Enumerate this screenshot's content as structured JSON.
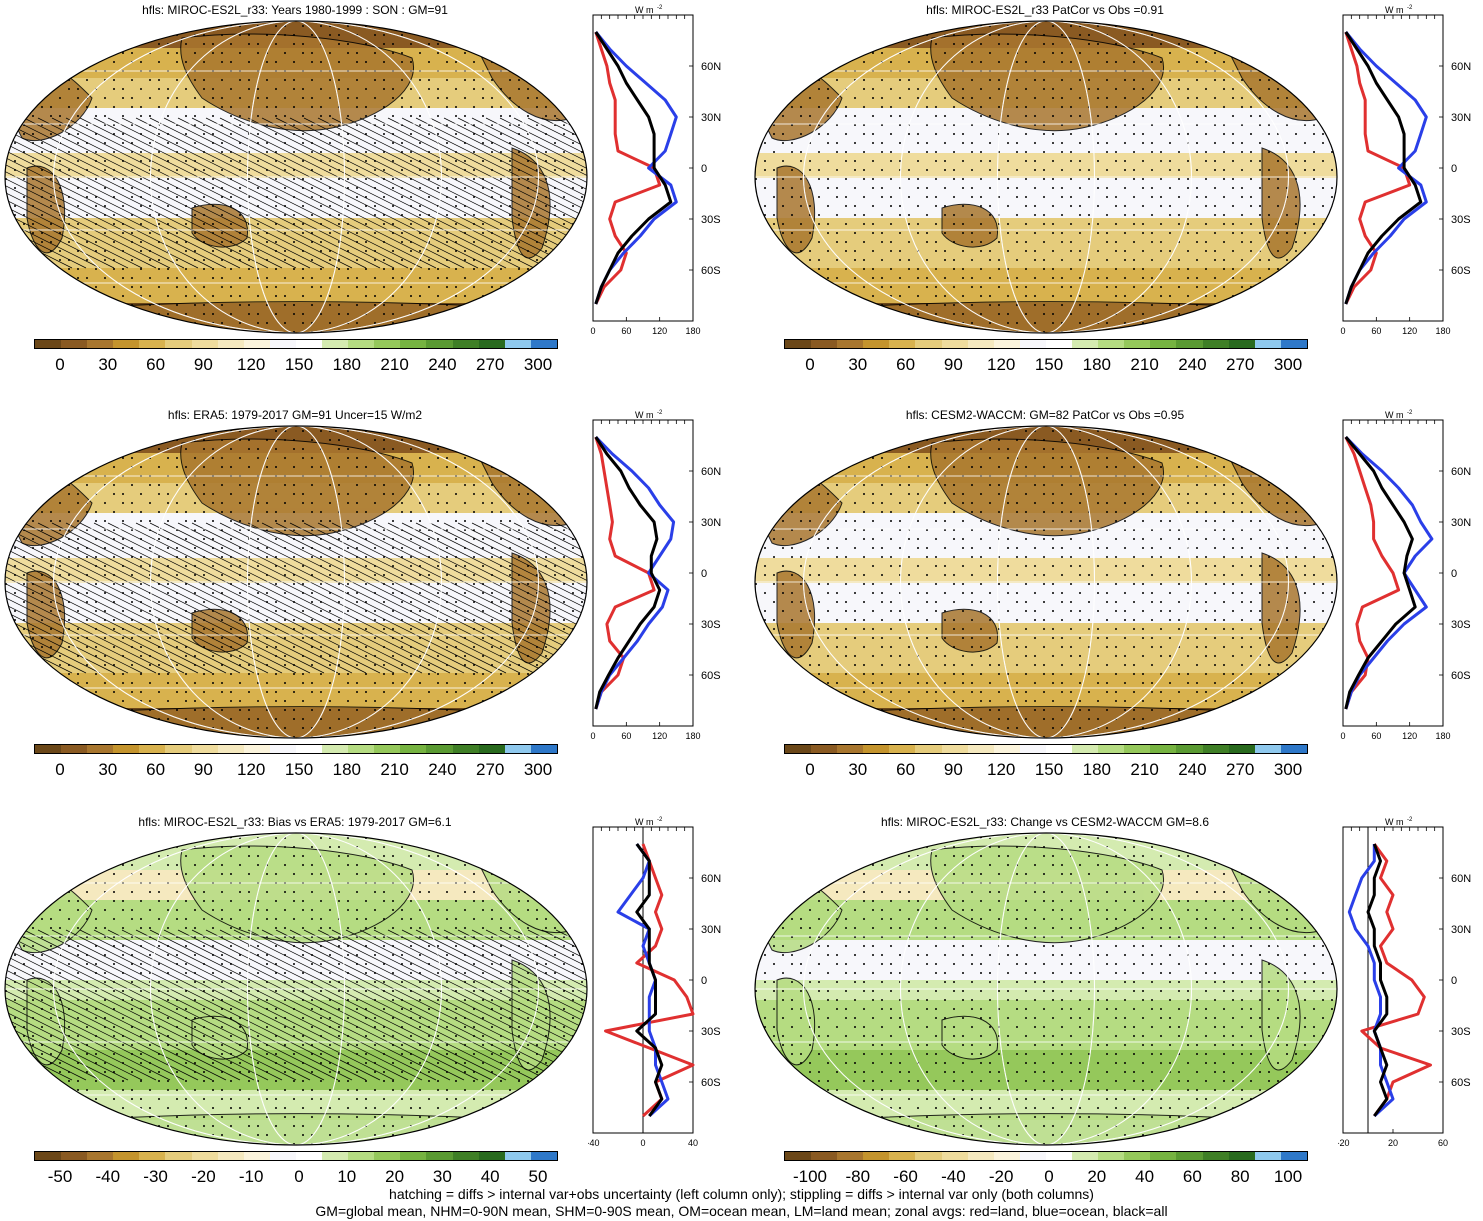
{
  "colors": {
    "scale": [
      "#6b4718",
      "#8a5a22",
      "#a8762e",
      "#c4942d",
      "#d8b24e",
      "#e5cc7c",
      "#efdc9d",
      "#f5e9bf",
      "#fbf4dc",
      "#f7f7fb",
      "#ffffff",
      "#d4ebb0",
      "#b5dc82",
      "#95c85b",
      "#76b341",
      "#5a9a32",
      "#3f7f26",
      "#296a1e",
      "#8fc9ee",
      "#2e78c9"
    ],
    "land": "#e03030",
    "ocean": "#2a3fe8",
    "all": "#000000"
  },
  "panels": [
    {
      "id": "top-left",
      "title": "hfls: MIROC-ES2L_r33: Years 1980-1999 : SON : GM=91",
      "cbar_labels": [
        "0",
        "30",
        "60",
        "90",
        "120",
        "150",
        "180",
        "210",
        "240",
        "270",
        "300"
      ],
      "hatch": true
    },
    {
      "id": "top-right",
      "title": "hfls: MIROC-ES2L_r33 PatCor vs Obs =0.91",
      "cbar_labels": [
        "0",
        "30",
        "60",
        "90",
        "120",
        "150",
        "180",
        "210",
        "240",
        "270",
        "300"
      ],
      "hatch": false
    },
    {
      "id": "mid-left",
      "title": "hfls: ERA5: 1979-2017 GM=91 Uncer=15 W/m2",
      "cbar_labels": [
        "0",
        "30",
        "60",
        "90",
        "120",
        "150",
        "180",
        "210",
        "240",
        "270",
        "300"
      ],
      "hatch": true
    },
    {
      "id": "mid-right",
      "title": "hfls: CESM2-WACCM: GM=82 PatCor vs Obs =0.95",
      "cbar_labels": [
        "0",
        "30",
        "60",
        "90",
        "120",
        "150",
        "180",
        "210",
        "240",
        "270",
        "300"
      ],
      "hatch": false
    },
    {
      "id": "bot-left",
      "title": "hfls: MIROC-ES2L_r33: Bias vs ERA5: 1979-2017  GM=6.1",
      "cbar_labels": [
        "-50",
        "-40",
        "-30",
        "-20",
        "-10",
        "0",
        "10",
        "20",
        "30",
        "40",
        "50"
      ],
      "hatch": true
    },
    {
      "id": "bot-right",
      "title": "hfls: MIROC-ES2L_r33: Change vs CESM2-WACCM GM=8.6",
      "cbar_labels": [
        "-100",
        "-80",
        "-60",
        "-40",
        "-20",
        "0",
        "20",
        "40",
        "60",
        "80",
        "100"
      ],
      "hatch": false
    }
  ],
  "zonal_unit": "W m",
  "zonal_unit_exp": "-2",
  "lat_labels": [
    "60N",
    "30N",
    "0",
    "30S",
    "60S"
  ],
  "chart_data": [
    {
      "type": "line",
      "title": "",
      "xlabel": "W m-2",
      "ylabel": "",
      "xlim": [
        0,
        180
      ],
      "xticks": [
        "0",
        "60",
        "120",
        "180"
      ],
      "y": [
        80,
        70,
        60,
        50,
        40,
        30,
        20,
        10,
        0,
        -10,
        -20,
        -30,
        -40,
        -50,
        -60,
        -70,
        -80
      ],
      "series": [
        {
          "name": "red=land",
          "values": [
            5,
            15,
            25,
            30,
            40,
            40,
            40,
            45,
            110,
            120,
            40,
            30,
            40,
            60,
            50,
            20,
            5
          ]
        },
        {
          "name": "blue=ocean",
          "values": [
            5,
            30,
            60,
            95,
            130,
            150,
            140,
            130,
            100,
            140,
            150,
            110,
            85,
            55,
            30,
            15,
            5
          ]
        },
        {
          "name": "black=all",
          "values": [
            5,
            25,
            45,
            60,
            80,
            100,
            110,
            110,
            110,
            130,
            140,
            100,
            70,
            45,
            30,
            15,
            5
          ]
        }
      ]
    },
    {
      "type": "line",
      "title": "",
      "xlabel": "W m-2",
      "ylabel": "",
      "xlim": [
        0,
        180
      ],
      "xticks": [
        "0",
        "60",
        "120",
        "180"
      ],
      "y": [
        80,
        70,
        60,
        50,
        40,
        30,
        20,
        10,
        0,
        -10,
        -20,
        -30,
        -40,
        -50,
        -60,
        -70,
        -80
      ],
      "series": [
        {
          "name": "red=land",
          "values": [
            5,
            15,
            25,
            30,
            40,
            40,
            40,
            45,
            110,
            120,
            40,
            30,
            40,
            60,
            50,
            20,
            5
          ]
        },
        {
          "name": "blue=ocean",
          "values": [
            5,
            30,
            60,
            95,
            130,
            150,
            140,
            130,
            100,
            140,
            150,
            110,
            85,
            55,
            30,
            15,
            5
          ]
        },
        {
          "name": "black=all",
          "values": [
            5,
            25,
            45,
            60,
            80,
            100,
            110,
            110,
            110,
            130,
            140,
            100,
            70,
            45,
            30,
            15,
            5
          ]
        }
      ]
    },
    {
      "type": "line",
      "title": "",
      "xlabel": "W m-2",
      "ylabel": "",
      "xlim": [
        0,
        180
      ],
      "xticks": [
        "0",
        "60",
        "120",
        "180"
      ],
      "y": [
        80,
        70,
        60,
        50,
        40,
        30,
        20,
        10,
        0,
        -10,
        -20,
        -30,
        -40,
        -50,
        -60,
        -70,
        -80
      ],
      "series": [
        {
          "name": "red=land",
          "values": [
            5,
            15,
            20,
            25,
            30,
            35,
            30,
            40,
            100,
            110,
            40,
            25,
            30,
            55,
            45,
            15,
            5
          ]
        },
        {
          "name": "blue=ocean",
          "values": [
            5,
            35,
            70,
            100,
            120,
            145,
            140,
            120,
            100,
            135,
            125,
            100,
            80,
            55,
            30,
            15,
            5
          ]
        },
        {
          "name": "black=all",
          "values": [
            5,
            25,
            50,
            65,
            85,
            110,
            115,
            105,
            105,
            120,
            110,
            85,
            65,
            45,
            28,
            12,
            5
          ]
        }
      ]
    },
    {
      "type": "line",
      "title": "",
      "xlabel": "W m-2",
      "ylabel": "",
      "xlim": [
        0,
        180
      ],
      "xticks": [
        "0",
        "60",
        "120",
        "180"
      ],
      "y": [
        80,
        70,
        60,
        50,
        40,
        30,
        20,
        10,
        0,
        -10,
        -20,
        -30,
        -40,
        -50,
        -60,
        -70,
        -80
      ],
      "series": [
        {
          "name": "red=land",
          "values": [
            5,
            20,
            30,
            40,
            50,
            55,
            55,
            70,
            90,
            100,
            35,
            25,
            30,
            45,
            40,
            15,
            5
          ]
        },
        {
          "name": "blue=ocean",
          "values": [
            5,
            35,
            70,
            100,
            125,
            140,
            160,
            130,
            110,
            130,
            150,
            110,
            80,
            55,
            30,
            15,
            5
          ]
        },
        {
          "name": "black=all",
          "values": [
            5,
            30,
            55,
            70,
            90,
            110,
            125,
            115,
            110,
            120,
            130,
            95,
            70,
            45,
            28,
            12,
            5
          ]
        }
      ]
    },
    {
      "type": "line",
      "title": "",
      "xlabel": "W m-2",
      "ylabel": "",
      "xlim": [
        -40,
        40
      ],
      "xticks": [
        "-40",
        "0",
        "40"
      ],
      "y": [
        80,
        70,
        60,
        50,
        40,
        30,
        20,
        10,
        0,
        -10,
        -20,
        -30,
        -40,
        -50,
        -60,
        -70,
        -80
      ],
      "series": [
        {
          "name": "red=land",
          "values": [
            0,
            5,
            10,
            15,
            10,
            15,
            10,
            -5,
            25,
            35,
            40,
            -30,
            5,
            40,
            10,
            15,
            0
          ]
        },
        {
          "name": "blue=ocean",
          "values": [
            -5,
            5,
            0,
            -10,
            -20,
            5,
            0,
            5,
            10,
            5,
            5,
            5,
            10,
            10,
            15,
            20,
            5
          ]
        },
        {
          "name": "black=all",
          "values": [
            -5,
            5,
            5,
            5,
            -5,
            5,
            5,
            5,
            10,
            10,
            10,
            -5,
            10,
            15,
            10,
            15,
            5
          ]
        }
      ]
    },
    {
      "type": "line",
      "title": "",
      "xlabel": "W m-2",
      "ylabel": "",
      "xlim": [
        -20,
        60
      ],
      "xticks": [
        "-20",
        "20",
        "60"
      ],
      "y": [
        80,
        70,
        60,
        50,
        40,
        30,
        20,
        10,
        0,
        -10,
        -20,
        -30,
        -40,
        -50,
        -60,
        -70,
        -80
      ],
      "series": [
        {
          "name": "red=land",
          "values": [
            5,
            15,
            10,
            20,
            15,
            20,
            10,
            15,
            35,
            45,
            40,
            -5,
            10,
            50,
            20,
            15,
            5
          ]
        },
        {
          "name": "blue=ocean",
          "values": [
            5,
            5,
            -5,
            -10,
            -15,
            -10,
            0,
            5,
            5,
            10,
            10,
            5,
            10,
            10,
            15,
            20,
            5
          ]
        },
        {
          "name": "black=all",
          "values": [
            5,
            10,
            5,
            5,
            0,
            5,
            5,
            10,
            10,
            15,
            15,
            5,
            10,
            15,
            10,
            15,
            5
          ]
        }
      ]
    }
  ],
  "footer": {
    "line1": "hatching = diffs > internal var+obs uncertainty (left column only); stippling = diffs > internal var only (both columns)",
    "line2": "GM=global mean, NHM=0-90N mean, SHM=0-90S mean, OM=ocean mean, LM=land mean; zonal avgs: red=land, blue=ocean, black=all"
  }
}
